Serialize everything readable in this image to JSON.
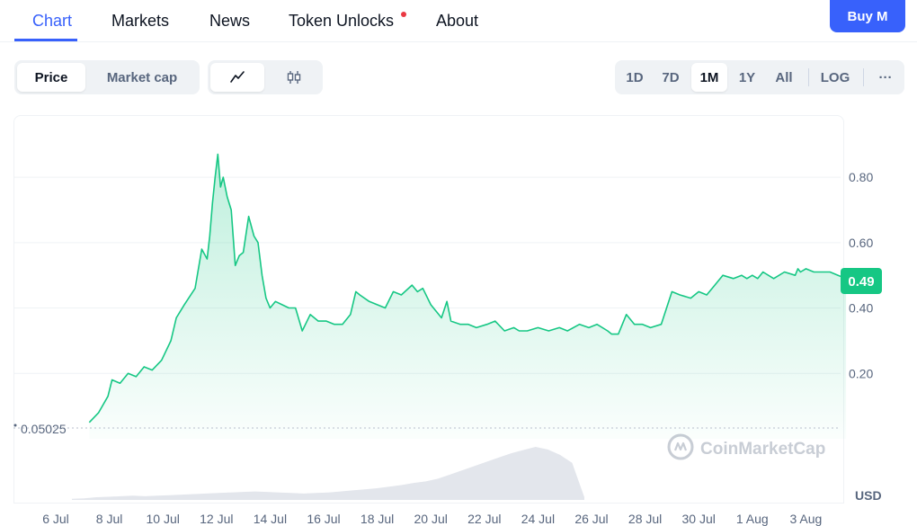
{
  "tabs": {
    "chart": "Chart",
    "markets": "Markets",
    "news": "News",
    "token_unlocks": "Token Unlocks",
    "about": "About"
  },
  "buy_button": "Buy M",
  "metric_toggle": {
    "price": "Price",
    "market_cap": "Market cap",
    "selected": "Price"
  },
  "chart_style_toggle": {
    "icons": [
      "line-chart-icon",
      "candlestick-icon"
    ],
    "selected": "line"
  },
  "range_buttons": {
    "d1": "1D",
    "d7": "7D",
    "m1": "1M",
    "y1": "1Y",
    "all": "All",
    "log": "LOG",
    "more": "···",
    "selected": "1M"
  },
  "colors": {
    "accent": "#3861fb",
    "line": "#16c784",
    "notification": "#ea3943",
    "price_badge": "#16c784"
  },
  "price_badge": "0.49",
  "open_price_label": "0.05025",
  "watermark": "CoinMarketCap",
  "currency_label": "USD",
  "chart_data": {
    "type": "area",
    "x_tick_labels": [
      "6 Jul",
      "8 Jul",
      "10 Jul",
      "12 Jul",
      "14 Jul",
      "16 Jul",
      "18 Jul",
      "20 Jul",
      "22 Jul",
      "24 Jul",
      "26 Jul",
      "28 Jul",
      "30 Jul",
      "1 Aug",
      "3 Aug"
    ],
    "y_tick_labels": [
      "0.20",
      "0.40",
      "0.60",
      "0.80"
    ],
    "y_ticks": [
      0.2,
      0.4,
      0.6,
      0.8
    ],
    "ylim": [
      0,
      0.99
    ],
    "xlim_days": [
      0,
      29.6
    ],
    "grid": true,
    "series": [
      {
        "x_days": [
          1.25,
          1.6,
          1.95,
          2.1,
          2.4,
          2.7,
          3.0,
          3.3,
          3.6,
          3.95,
          4.3,
          4.5,
          4.8,
          5.2,
          5.45,
          5.65,
          5.75,
          5.85,
          5.95,
          6.05,
          6.15,
          6.25,
          6.4,
          6.55,
          6.7,
          6.85,
          7.0,
          7.2,
          7.4,
          7.55,
          7.7,
          7.85,
          8.0,
          8.2,
          8.45,
          8.7,
          8.95,
          9.2,
          9.5,
          9.8,
          10.1,
          10.4,
          10.7,
          11.0,
          11.2,
          11.35,
          11.7,
          12.0,
          12.3,
          12.6,
          12.9,
          13.3,
          13.5,
          13.7,
          14.0,
          14.4,
          14.6,
          14.75,
          15.1,
          15.4,
          15.7,
          16.1,
          16.4,
          16.75,
          17.1,
          17.3,
          17.6,
          18.0,
          18.4,
          18.8,
          19.1,
          19.55,
          19.9,
          20.2,
          20.6,
          20.75,
          21.0,
          21.3,
          21.6,
          21.9,
          22.2,
          22.6,
          23.0,
          23.3,
          23.7,
          24.0,
          24.3,
          24.6,
          24.9,
          25.3,
          25.6,
          25.8,
          26.0,
          26.2,
          26.4,
          26.8,
          27.2,
          27.6,
          27.7,
          27.8,
          28.0,
          28.3,
          28.6,
          28.9,
          29.2,
          29.5
        ],
        "y": [
          0.05,
          0.08,
          0.13,
          0.18,
          0.17,
          0.2,
          0.19,
          0.22,
          0.21,
          0.24,
          0.3,
          0.37,
          0.41,
          0.46,
          0.58,
          0.55,
          0.62,
          0.72,
          0.8,
          0.87,
          0.77,
          0.8,
          0.74,
          0.7,
          0.53,
          0.56,
          0.57,
          0.68,
          0.62,
          0.6,
          0.5,
          0.43,
          0.4,
          0.42,
          0.41,
          0.4,
          0.4,
          0.33,
          0.38,
          0.36,
          0.36,
          0.35,
          0.35,
          0.38,
          0.45,
          0.44,
          0.42,
          0.41,
          0.4,
          0.45,
          0.44,
          0.47,
          0.45,
          0.46,
          0.41,
          0.37,
          0.42,
          0.36,
          0.35,
          0.35,
          0.34,
          0.35,
          0.36,
          0.33,
          0.34,
          0.33,
          0.33,
          0.34,
          0.33,
          0.34,
          0.33,
          0.35,
          0.34,
          0.35,
          0.33,
          0.32,
          0.32,
          0.38,
          0.35,
          0.35,
          0.34,
          0.35,
          0.45,
          0.44,
          0.43,
          0.45,
          0.44,
          0.47,
          0.5,
          0.49,
          0.5,
          0.49,
          0.5,
          0.49,
          0.51,
          0.49,
          0.51,
          0.5,
          0.52,
          0.51,
          0.52,
          0.51,
          0.51,
          0.51,
          0.5,
          0.49
        ]
      }
    ],
    "volume_relative": [
      0.02,
      0.03,
      0.05,
      0.06,
      0.07,
      0.08,
      0.07,
      0.08,
      0.09,
      0.1,
      0.11,
      0.12,
      0.13,
      0.14,
      0.15,
      0.16,
      0.15,
      0.14,
      0.13,
      0.12,
      0.13,
      0.14,
      0.16,
      0.18,
      0.2,
      0.22,
      0.25,
      0.28,
      0.32,
      0.35,
      0.4,
      0.48,
      0.56,
      0.64,
      0.72,
      0.8,
      0.88,
      0.94,
      1.0,
      0.95,
      0.85,
      0.7,
      0.05
    ]
  }
}
